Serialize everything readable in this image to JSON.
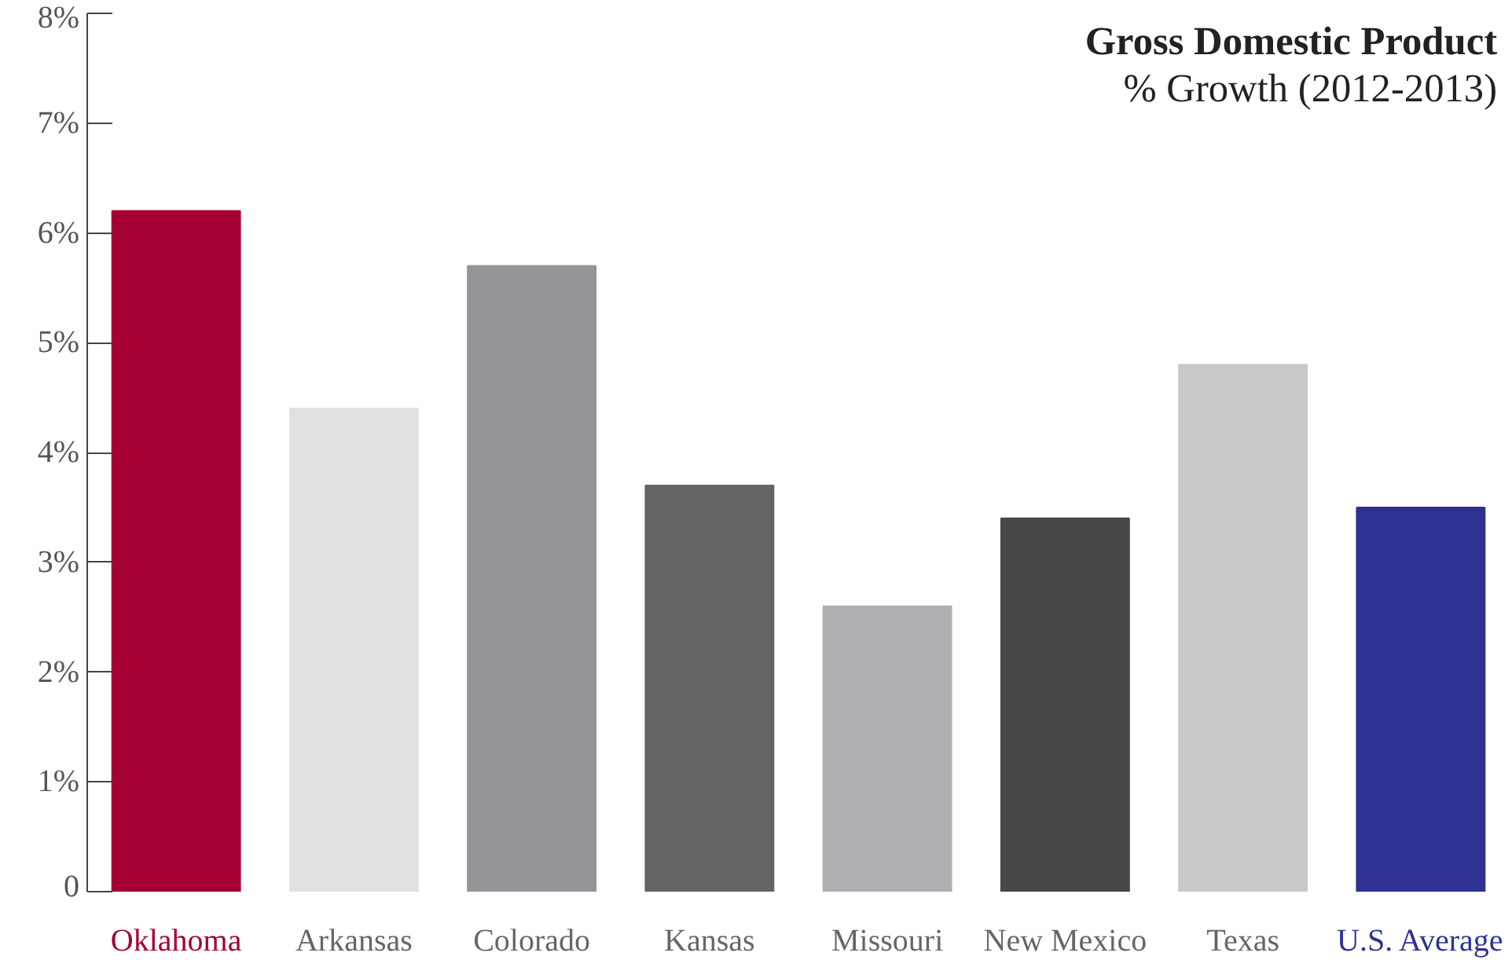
{
  "chart_data": {
    "type": "bar",
    "title": "Gross Domestic Product",
    "subtitle": "% Growth (2012-2013)",
    "categories": [
      "Oklahoma",
      "Arkansas",
      "Colorado",
      "Kansas",
      "Missouri",
      "New Mexico",
      "Texas",
      "U.S. Average"
    ],
    "values": [
      6.2,
      4.4,
      5.7,
      3.7,
      2.6,
      3.4,
      4.8,
      3.5
    ],
    "colors": [
      "#a50034",
      "#e0e1e3",
      "#939598",
      "#636466",
      "#adafb2",
      "#464749",
      "#c8c9cb",
      "#2e3192"
    ],
    "ylim": [
      0,
      8
    ],
    "yticks": [
      {
        "value": 0,
        "label": "0"
      },
      {
        "value": 1,
        "label": "1%"
      },
      {
        "value": 2,
        "label": "2%"
      },
      {
        "value": 3,
        "label": "3%"
      },
      {
        "value": 4,
        "label": "4%"
      },
      {
        "value": 5,
        "label": "5%"
      },
      {
        "value": 6,
        "label": "6%"
      },
      {
        "value": 7,
        "label": "7%"
      },
      {
        "value": 8,
        "label": "8%"
      }
    ],
    "grid": false
  }
}
